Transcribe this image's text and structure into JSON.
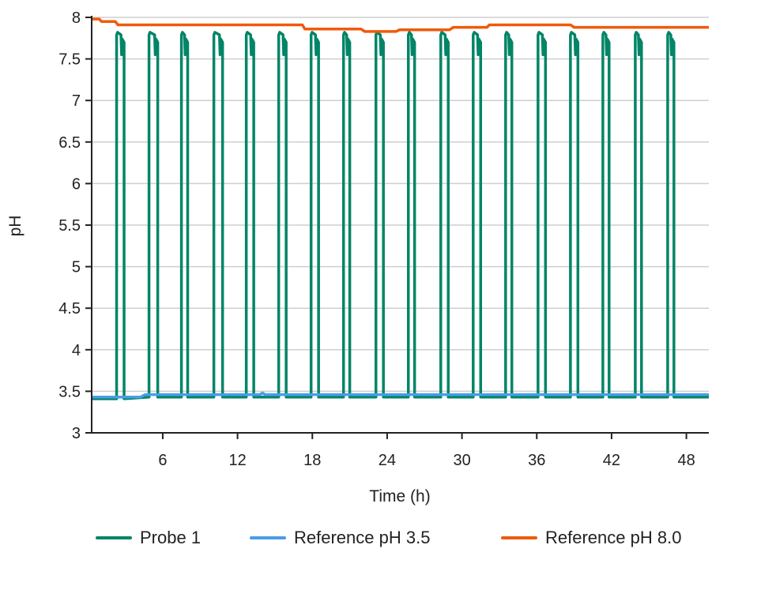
{
  "chart_data": {
    "type": "line",
    "xlabel": "Time (h)",
    "ylabel": "pH",
    "xlim": [
      0.3,
      49.8
    ],
    "ylim": [
      3,
      8
    ],
    "xticks": [
      6,
      12,
      18,
      24,
      30,
      36,
      42,
      48
    ],
    "yticks": [
      3,
      3.5,
      4,
      4.5,
      5,
      5.5,
      6,
      6.5,
      7,
      7.5,
      8
    ],
    "ytick_labels": [
      "3",
      "3.5",
      "4",
      "4.5",
      "5",
      "5.5",
      "6",
      "6.5",
      "7",
      "7.5",
      "8"
    ],
    "grid": "horizontal",
    "legend_position": "bottom",
    "series": [
      {
        "name": "Probe 1",
        "color": "#008566",
        "baseline": [
          [
            0.3,
            3.41
          ],
          [
            4.5,
            3.41
          ],
          [
            4.6,
            3.43
          ],
          [
            49.8,
            3.43
          ]
        ],
        "peak": 7.82,
        "pulses": [
          [
            2.3,
            2.9
          ],
          [
            4.9,
            5.6
          ],
          [
            7.5,
            8.0
          ],
          [
            10.1,
            10.8
          ],
          [
            12.7,
            13.3
          ],
          [
            15.3,
            15.9
          ],
          [
            17.9,
            18.5
          ],
          [
            20.5,
            21.0
          ],
          [
            23.1,
            23.7
          ],
          [
            25.7,
            26.2
          ],
          [
            28.3,
            28.9
          ],
          [
            30.9,
            31.5
          ],
          [
            33.5,
            34.0
          ],
          [
            36.1,
            36.7
          ],
          [
            38.7,
            39.3
          ],
          [
            41.3,
            41.8
          ],
          [
            43.9,
            44.4
          ],
          [
            46.5,
            47.0
          ]
        ]
      },
      {
        "name": "Reference pH 3.5",
        "color": "#4a9de8",
        "points": [
          [
            0.3,
            3.43
          ],
          [
            4.2,
            3.43
          ],
          [
            4.6,
            3.46
          ],
          [
            13.8,
            3.46
          ],
          [
            14.0,
            3.48
          ],
          [
            14.2,
            3.46
          ],
          [
            49.8,
            3.46
          ]
        ]
      },
      {
        "name": "Reference pH 8.0",
        "color": "#f05a0a",
        "points": [
          [
            0.3,
            7.98
          ],
          [
            0.9,
            7.98
          ],
          [
            1.1,
            7.95
          ],
          [
            2.2,
            7.95
          ],
          [
            2.4,
            7.91
          ],
          [
            17.2,
            7.91
          ],
          [
            17.4,
            7.86
          ],
          [
            21.9,
            7.86
          ],
          [
            22.2,
            7.83
          ],
          [
            24.7,
            7.83
          ],
          [
            25.0,
            7.85
          ],
          [
            29.0,
            7.85
          ],
          [
            29.3,
            7.88
          ],
          [
            32.0,
            7.88
          ],
          [
            32.2,
            7.91
          ],
          [
            38.7,
            7.91
          ],
          [
            39.0,
            7.88
          ],
          [
            49.8,
            7.88
          ]
        ]
      }
    ]
  }
}
